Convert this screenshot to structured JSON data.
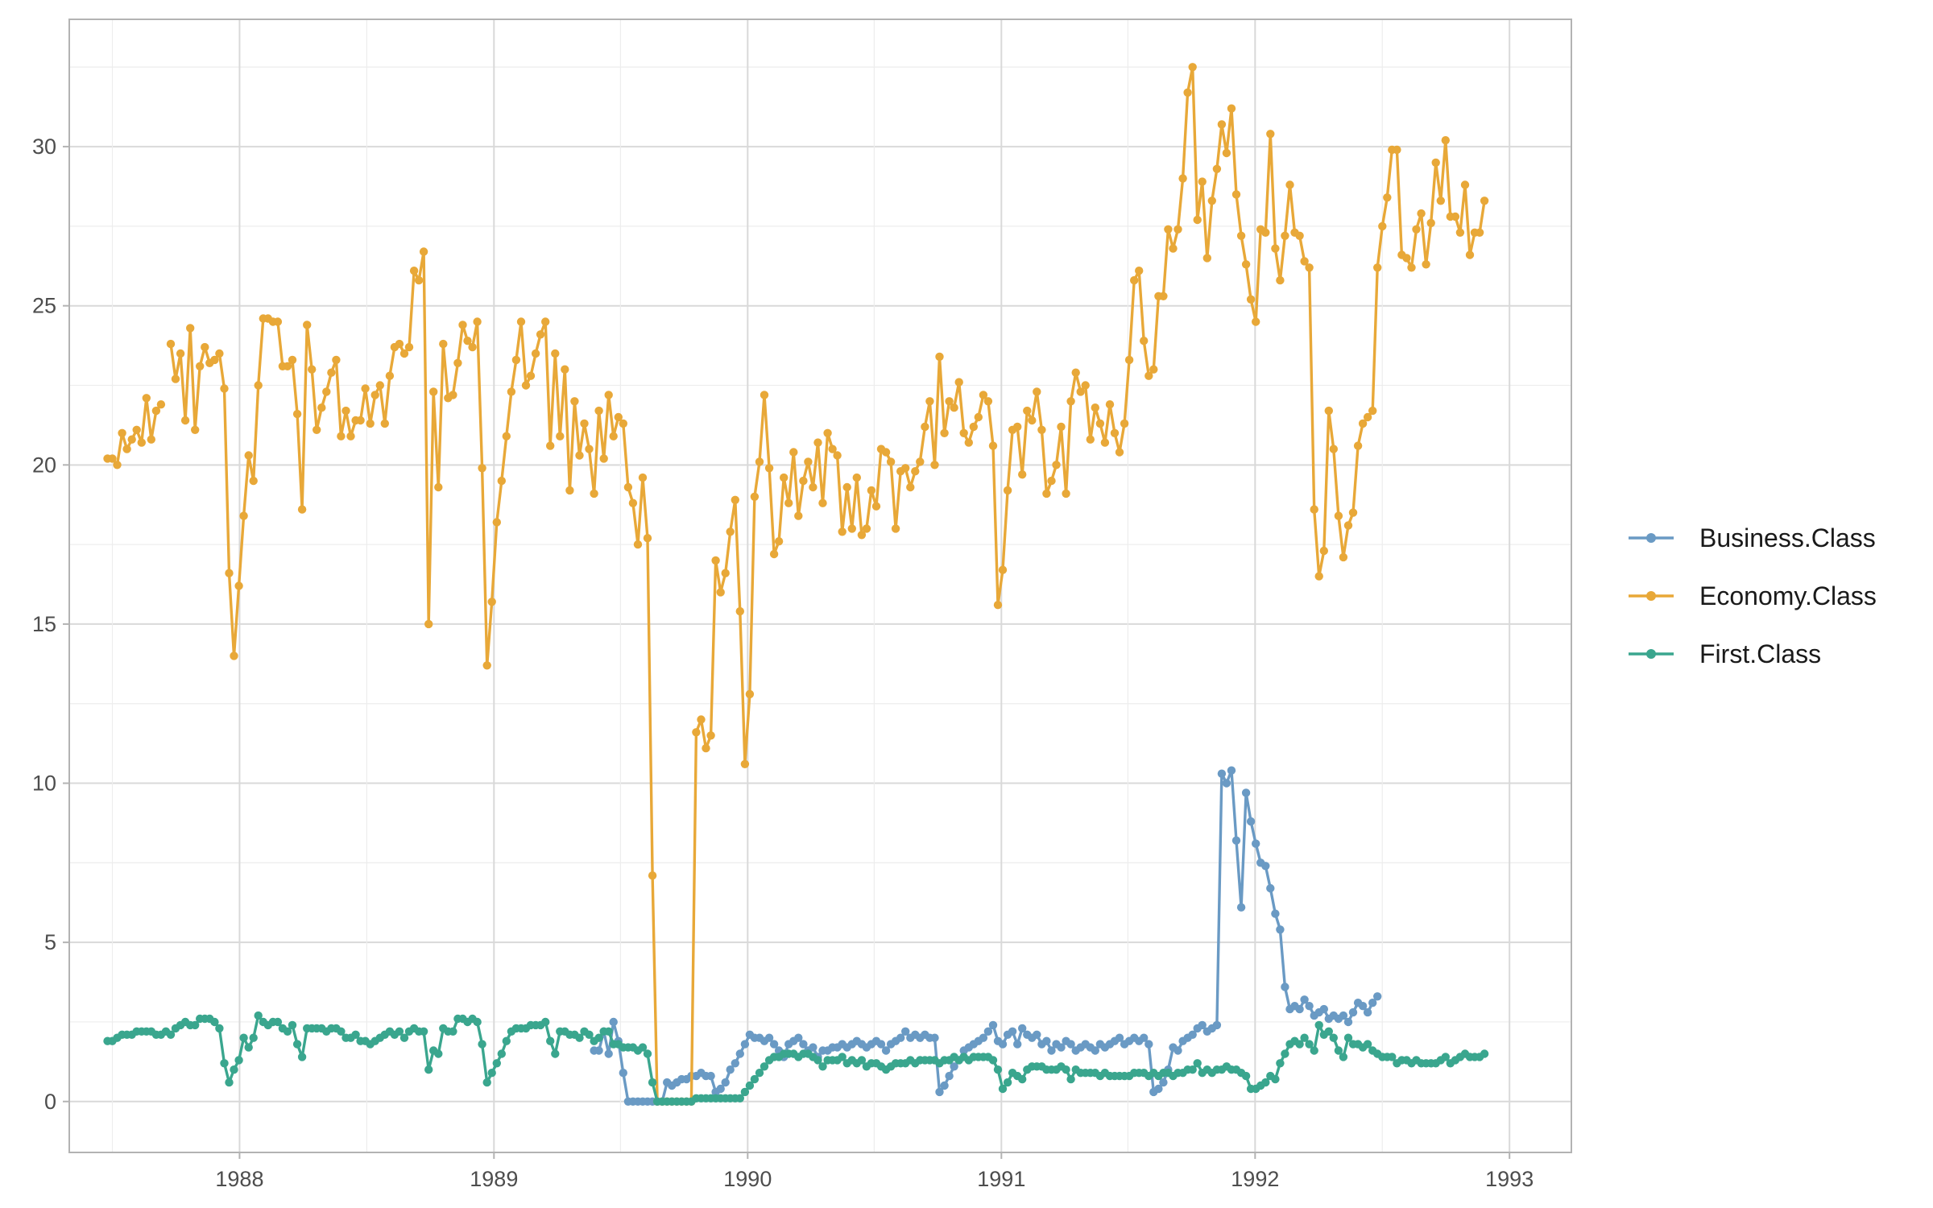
{
  "chart_data": {
    "type": "line",
    "title": "",
    "xlabel": "",
    "ylabel": "",
    "x_start": "1987-06-25",
    "x_step_days": 7,
    "x_ticks": [
      "1988",
      "1989",
      "1990",
      "1991",
      "1992",
      "1993"
    ],
    "y_ticks": [
      "0",
      "5",
      "10",
      "15",
      "20",
      "25",
      "30"
    ],
    "ylim": [
      -1.6,
      34.0
    ],
    "grid": true,
    "legend_position": "right",
    "series": [
      {
        "name": "Business.Class",
        "color": "#6a9ac4",
        "values": [
          null,
          null,
          null,
          null,
          null,
          null,
          null,
          null,
          null,
          null,
          null,
          null,
          null,
          null,
          null,
          null,
          null,
          null,
          null,
          null,
          null,
          null,
          null,
          null,
          null,
          null,
          null,
          null,
          null,
          null,
          null,
          null,
          null,
          null,
          null,
          null,
          null,
          null,
          null,
          null,
          null,
          null,
          null,
          null,
          null,
          null,
          null,
          null,
          null,
          null,
          null,
          null,
          null,
          null,
          null,
          null,
          null,
          null,
          null,
          null,
          null,
          null,
          null,
          null,
          null,
          null,
          null,
          null,
          null,
          null,
          null,
          null,
          null,
          null,
          null,
          null,
          null,
          null,
          null,
          null,
          null,
          null,
          null,
          null,
          null,
          null,
          null,
          null,
          null,
          null,
          null,
          null,
          null,
          null,
          null,
          null,
          null,
          null,
          null,
          null,
          1.6,
          1.6,
          2.2,
          1.5,
          2.5,
          1.9,
          0.9,
          0.0,
          0.0,
          0.0,
          0.0,
          0.0,
          0.0,
          0.0,
          0.0,
          0.6,
          0.5,
          0.6,
          0.7,
          0.7,
          0.8,
          0.8,
          0.9,
          0.8,
          0.8,
          0.3,
          0.4,
          0.6,
          1.0,
          1.2,
          1.5,
          1.8,
          2.1,
          2.0,
          2.0,
          1.9,
          2.0,
          1.8,
          1.6,
          1.4,
          1.8,
          1.9,
          2.0,
          1.8,
          1.6,
          1.7,
          1.4,
          1.6,
          1.6,
          1.7,
          1.7,
          1.8,
          1.7,
          1.8,
          1.9,
          1.8,
          1.7,
          1.8,
          1.9,
          1.8,
          1.6,
          1.8,
          1.9,
          2.0,
          2.2,
          2.0,
          2.1,
          2.0,
          2.1,
          2.0,
          2.0,
          0.3,
          0.5,
          0.8,
          1.1,
          1.3,
          1.6,
          1.7,
          1.8,
          1.9,
          2.0,
          2.2,
          2.4,
          1.9,
          1.8,
          2.1,
          2.2,
          1.8,
          2.3,
          2.1,
          2.0,
          2.1,
          1.8,
          1.9,
          1.6,
          1.8,
          1.7,
          1.9,
          1.8,
          1.6,
          1.7,
          1.8,
          1.7,
          1.6,
          1.8,
          1.7,
          1.8,
          1.9,
          2.0,
          1.8,
          1.9,
          2.0,
          1.9,
          2.0,
          1.8,
          0.3,
          0.4,
          0.6,
          1.0,
          1.7,
          1.6,
          1.9,
          2.0,
          2.1,
          2.3,
          2.4,
          2.2,
          2.3,
          2.4,
          10.3,
          10.0,
          10.4,
          8.2,
          6.1,
          9.7,
          8.8,
          8.1,
          7.5,
          7.4,
          6.7,
          5.9,
          5.4,
          3.6,
          2.9,
          3.0,
          2.9,
          3.2,
          3.0,
          2.7,
          2.8,
          2.9,
          2.6,
          2.7,
          2.6,
          2.7,
          2.5,
          2.8,
          3.1,
          3.0,
          2.8,
          3.1,
          3.3
        ]
      },
      {
        "name": "Economy.Class",
        "color": "#e8a838",
        "values": [
          20.2,
          20.2,
          20.0,
          21.0,
          20.5,
          20.8,
          21.1,
          20.7,
          22.1,
          20.8,
          21.7,
          21.9,
          null,
          23.8,
          22.7,
          23.5,
          21.4,
          24.3,
          21.1,
          23.1,
          23.7,
          23.2,
          23.3,
          23.5,
          22.4,
          16.6,
          14.0,
          16.2,
          18.4,
          20.3,
          19.5,
          22.5,
          24.6,
          24.6,
          24.5,
          24.5,
          23.1,
          23.1,
          23.3,
          21.6,
          18.6,
          24.4,
          23.0,
          21.1,
          21.8,
          22.3,
          22.9,
          23.3,
          20.9,
          21.7,
          20.9,
          21.4,
          21.4,
          22.4,
          21.3,
          22.2,
          22.5,
          21.3,
          22.8,
          23.7,
          23.8,
          23.5,
          23.7,
          26.1,
          25.8,
          26.7,
          15.0,
          22.3,
          19.3,
          23.8,
          22.1,
          22.2,
          23.2,
          24.4,
          23.9,
          23.7,
          24.5,
          19.9,
          13.7,
          15.7,
          18.2,
          19.5,
          20.9,
          22.3,
          23.3,
          24.5,
          22.5,
          22.8,
          23.5,
          24.1,
          24.5,
          20.6,
          23.5,
          20.9,
          23.0,
          19.2,
          22.0,
          20.3,
          21.3,
          20.5,
          19.1,
          21.7,
          20.2,
          22.2,
          20.9,
          21.5,
          21.3,
          19.3,
          18.8,
          17.5,
          19.6,
          17.7,
          7.1,
          0.0,
          0.0,
          0.0,
          0.0,
          0.0,
          0.0,
          0.0,
          0.0,
          11.6,
          12.0,
          11.1,
          11.5,
          17.0,
          16.0,
          16.6,
          17.9,
          18.9,
          15.4,
          10.6,
          12.8,
          19.0,
          20.1,
          22.2,
          19.9,
          17.2,
          17.6,
          19.6,
          18.8,
          20.4,
          18.4,
          19.5,
          20.1,
          19.3,
          20.7,
          18.8,
          21.0,
          20.5,
          20.3,
          17.9,
          19.3,
          18.0,
          19.6,
          17.8,
          18.0,
          19.2,
          18.7,
          20.5,
          20.4,
          20.1,
          18.0,
          19.8,
          19.9,
          19.3,
          19.8,
          20.1,
          21.2,
          22.0,
          20.0,
          23.4,
          21.0,
          22.0,
          21.8,
          22.6,
          21.0,
          20.7,
          21.2,
          21.5,
          22.2,
          22.0,
          20.6,
          15.6,
          16.7,
          19.2,
          21.1,
          21.2,
          19.7,
          21.7,
          21.4,
          22.3,
          21.1,
          19.1,
          19.5,
          20.0,
          21.2,
          19.1,
          22.0,
          22.9,
          22.3,
          22.5,
          20.8,
          21.8,
          21.3,
          20.7,
          21.9,
          21.0,
          20.4,
          21.3,
          23.3,
          25.8,
          26.1,
          23.9,
          22.8,
          23.0,
          25.3,
          25.3,
          27.4,
          26.8,
          27.4,
          29.0,
          31.7,
          32.5,
          27.7,
          28.9,
          26.5,
          28.3,
          29.3,
          30.7,
          29.8,
          31.2,
          28.5,
          27.2,
          26.3,
          25.2,
          24.5,
          27.4,
          27.3,
          30.4,
          26.8,
          25.8,
          27.2,
          28.8,
          27.3,
          27.2,
          26.4,
          26.2,
          18.6,
          16.5,
          17.3,
          21.7,
          20.5,
          18.4,
          17.1,
          18.1,
          18.5,
          20.6,
          21.3,
          21.5,
          21.7,
          26.2,
          27.5,
          28.4,
          29.9,
          29.9,
          26.6,
          26.5,
          26.2,
          27.4,
          27.9,
          26.3,
          27.6,
          29.5,
          28.3,
          30.2,
          27.8,
          27.8,
          27.3,
          28.8,
          26.6,
          27.3,
          27.3,
          28.3
        ]
      },
      {
        "name": "First.Class",
        "color": "#3aa68e",
        "values": [
          1.9,
          1.9,
          2.0,
          2.1,
          2.1,
          2.1,
          2.2,
          2.2,
          2.2,
          2.2,
          2.1,
          2.1,
          2.2,
          2.1,
          2.3,
          2.4,
          2.5,
          2.4,
          2.4,
          2.6,
          2.6,
          2.6,
          2.5,
          2.3,
          1.2,
          0.6,
          1.0,
          1.3,
          2.0,
          1.7,
          2.0,
          2.7,
          2.5,
          2.4,
          2.5,
          2.5,
          2.3,
          2.2,
          2.4,
          1.8,
          1.4,
          2.3,
          2.3,
          2.3,
          2.3,
          2.2,
          2.3,
          2.3,
          2.2,
          2.0,
          2.0,
          2.1,
          1.9,
          1.9,
          1.8,
          1.9,
          2.0,
          2.1,
          2.2,
          2.1,
          2.2,
          2.0,
          2.2,
          2.3,
          2.2,
          2.2,
          1.0,
          1.6,
          1.5,
          2.3,
          2.2,
          2.2,
          2.6,
          2.6,
          2.5,
          2.6,
          2.5,
          1.8,
          0.6,
          0.9,
          1.2,
          1.5,
          1.9,
          2.2,
          2.3,
          2.3,
          2.3,
          2.4,
          2.4,
          2.4,
          2.5,
          1.9,
          1.5,
          2.2,
          2.2,
          2.1,
          2.1,
          2.0,
          2.2,
          2.1,
          1.9,
          2.0,
          2.2,
          2.2,
          1.8,
          1.8,
          1.7,
          1.7,
          1.7,
          1.6,
          1.7,
          1.5,
          0.6,
          0.0,
          0.0,
          0.0,
          0.0,
          0.0,
          0.0,
          0.0,
          0.0,
          0.1,
          0.1,
          0.1,
          0.1,
          0.1,
          0.1,
          0.1,
          0.1,
          0.1,
          0.1,
          0.3,
          0.5,
          0.7,
          0.9,
          1.1,
          1.3,
          1.4,
          1.4,
          1.5,
          1.5,
          1.5,
          1.4,
          1.5,
          1.5,
          1.4,
          1.3,
          1.1,
          1.3,
          1.3,
          1.3,
          1.4,
          1.2,
          1.3,
          1.2,
          1.3,
          1.1,
          1.2,
          1.2,
          1.1,
          1.0,
          1.1,
          1.2,
          1.2,
          1.2,
          1.3,
          1.2,
          1.3,
          1.3,
          1.3,
          1.3,
          1.2,
          1.3,
          1.3,
          1.4,
          1.3,
          1.4,
          1.3,
          1.4,
          1.4,
          1.4,
          1.4,
          1.3,
          1.0,
          0.4,
          0.6,
          0.9,
          0.8,
          0.7,
          1.0,
          1.1,
          1.1,
          1.1,
          1.0,
          1.0,
          1.0,
          1.1,
          1.0,
          0.7,
          1.0,
          0.9,
          0.9,
          0.9,
          0.9,
          0.8,
          0.9,
          0.8,
          0.8,
          0.8,
          0.8,
          0.8,
          0.9,
          0.9,
          0.9,
          0.8,
          0.9,
          0.8,
          0.9,
          0.9,
          0.8,
          0.9,
          0.9,
          1.0,
          1.0,
          1.2,
          0.9,
          1.0,
          0.9,
          1.0,
          1.0,
          1.1,
          1.0,
          1.0,
          0.9,
          0.8,
          0.4,
          0.4,
          0.5,
          0.6,
          0.8,
          0.7,
          1.2,
          1.5,
          1.8,
          1.9,
          1.8,
          2.0,
          1.8,
          1.6,
          2.4,
          2.1,
          2.2,
          2.0,
          1.6,
          1.4,
          2.0,
          1.8,
          1.8,
          1.7,
          1.8,
          1.6,
          1.5,
          1.4,
          1.4,
          1.4,
          1.2,
          1.3,
          1.3,
          1.2,
          1.3,
          1.2,
          1.2,
          1.2,
          1.2,
          1.3,
          1.4,
          1.2,
          1.3,
          1.4,
          1.5,
          1.4,
          1.4,
          1.4,
          1.5
        ]
      }
    ]
  }
}
